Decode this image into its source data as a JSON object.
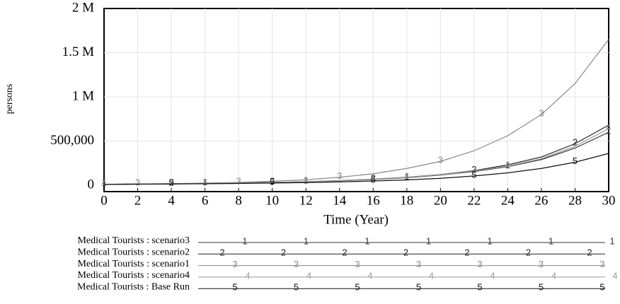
{
  "chart_data": {
    "type": "line",
    "y_label": "persons",
    "x_label": "Time (Year)",
    "x": [
      0,
      2,
      4,
      6,
      8,
      10,
      12,
      14,
      16,
      18,
      20,
      22,
      24,
      26,
      28,
      30
    ],
    "xlim": [
      0,
      30
    ],
    "xticks": [
      0,
      2,
      4,
      6,
      8,
      10,
      12,
      14,
      16,
      18,
      20,
      22,
      24,
      26,
      28,
      30
    ],
    "ylim": [
      0,
      2000000
    ],
    "yticks": [
      0,
      {
        "value": 500000,
        "label": "500,000"
      },
      {
        "value": 1000000,
        "label": "1 M"
      },
      {
        "value": 1500000,
        "label": "1.5 M"
      },
      {
        "value": 2000000,
        "label": "2 M"
      }
    ],
    "grid": true,
    "series": [
      {
        "name": "Medical Tourists : scenario3",
        "marker": "1",
        "color": "#333333",
        "values": [
          10000,
          13000,
          16000,
          20000,
          25000,
          31000,
          39000,
          50000,
          65000,
          85000,
          115000,
          155000,
          210000,
          290000,
          420000,
          600000
        ]
      },
      {
        "name": "Medical Tourists : scenario2",
        "marker": "2",
        "color": "#222222",
        "values": [
          10000,
          13000,
          16000,
          20000,
          25000,
          32000,
          40000,
          52000,
          68000,
          90000,
          120000,
          165000,
          230000,
          320000,
          470000,
          680000
        ]
      },
      {
        "name": "Medical Tourists : scenario1",
        "marker": "3",
        "color": "#888888",
        "values": [
          10000,
          14000,
          18000,
          24000,
          32000,
          45000,
          62000,
          90000,
          130000,
          190000,
          270000,
          390000,
          560000,
          800000,
          1150000,
          1650000
        ]
      },
      {
        "name": "Medical Tourists : scenario4",
        "marker": "4",
        "color": "#999999",
        "values": [
          10000,
          13000,
          16000,
          20000,
          25000,
          31000,
          39000,
          51000,
          66000,
          88000,
          118000,
          160000,
          215000,
          300000,
          440000,
          640000
        ]
      },
      {
        "name": "Medical Tourists : Base Run",
        "marker": "5",
        "color": "#111111",
        "values": [
          10000,
          12000,
          14000,
          17000,
          20000,
          25000,
          30000,
          38000,
          48000,
          60000,
          78000,
          105000,
          140000,
          190000,
          260000,
          360000
        ]
      }
    ]
  }
}
